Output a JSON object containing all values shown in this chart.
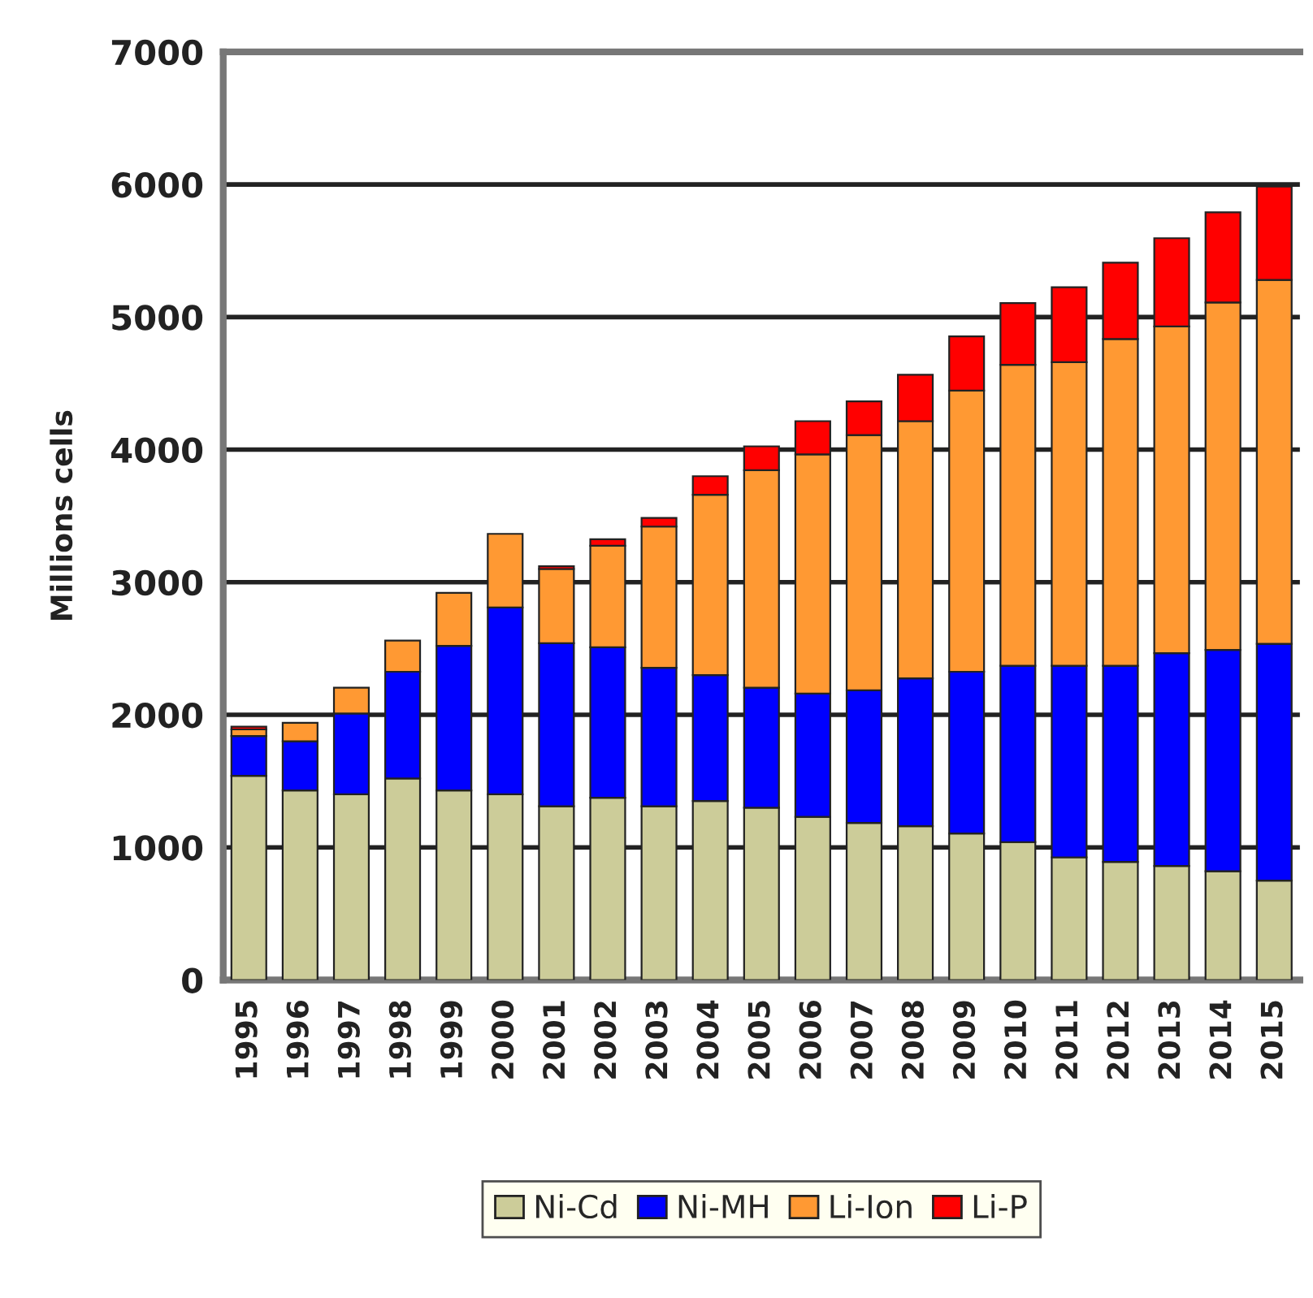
{
  "chart_data": {
    "type": "bar",
    "stacked": true,
    "ylabel": "Millions cells",
    "categories": [
      "1995",
      "1996",
      "1997",
      "1998",
      "1999",
      "2000",
      "2001",
      "2002",
      "2003",
      "2004",
      "2005",
      "2006",
      "2007",
      "2008",
      "2009",
      "2010",
      "2011",
      "2012",
      "2013",
      "2014",
      "2015"
    ],
    "series": [
      {
        "name": "Ni-Cd",
        "color": "#cccc99",
        "values": [
          1540,
          1430,
          1400,
          1520,
          1430,
          1400,
          1310,
          1375,
          1310,
          1350,
          1300,
          1230,
          1185,
          1160,
          1105,
          1040,
          925,
          890,
          860,
          820,
          750
        ]
      },
      {
        "name": "Ni-MH",
        "color": "#0000ff",
        "values": [
          300,
          370,
          610,
          805,
          1090,
          1410,
          1230,
          1135,
          1045,
          950,
          905,
          930,
          1000,
          1115,
          1220,
          1330,
          1445,
          1480,
          1605,
          1670,
          1785
        ]
      },
      {
        "name": "Li-Ion",
        "color": "#ff9933",
        "values": [
          50,
          140,
          195,
          235,
          400,
          555,
          560,
          765,
          1065,
          1360,
          1640,
          1805,
          1925,
          1940,
          2120,
          2270,
          2290,
          2465,
          2465,
          2620,
          2745
        ]
      },
      {
        "name": "Li-P",
        "color": "#ff0000",
        "values": [
          20,
          null,
          null,
          null,
          null,
          null,
          20,
          50,
          65,
          140,
          180,
          250,
          255,
          350,
          410,
          465,
          565,
          575,
          665,
          680,
          705
        ]
      }
    ],
    "ylim": [
      0,
      7000
    ],
    "yticks": [
      0,
      1000,
      2000,
      3000,
      4000,
      5000,
      6000,
      7000
    ],
    "grid": "y",
    "legend": "bottom"
  }
}
